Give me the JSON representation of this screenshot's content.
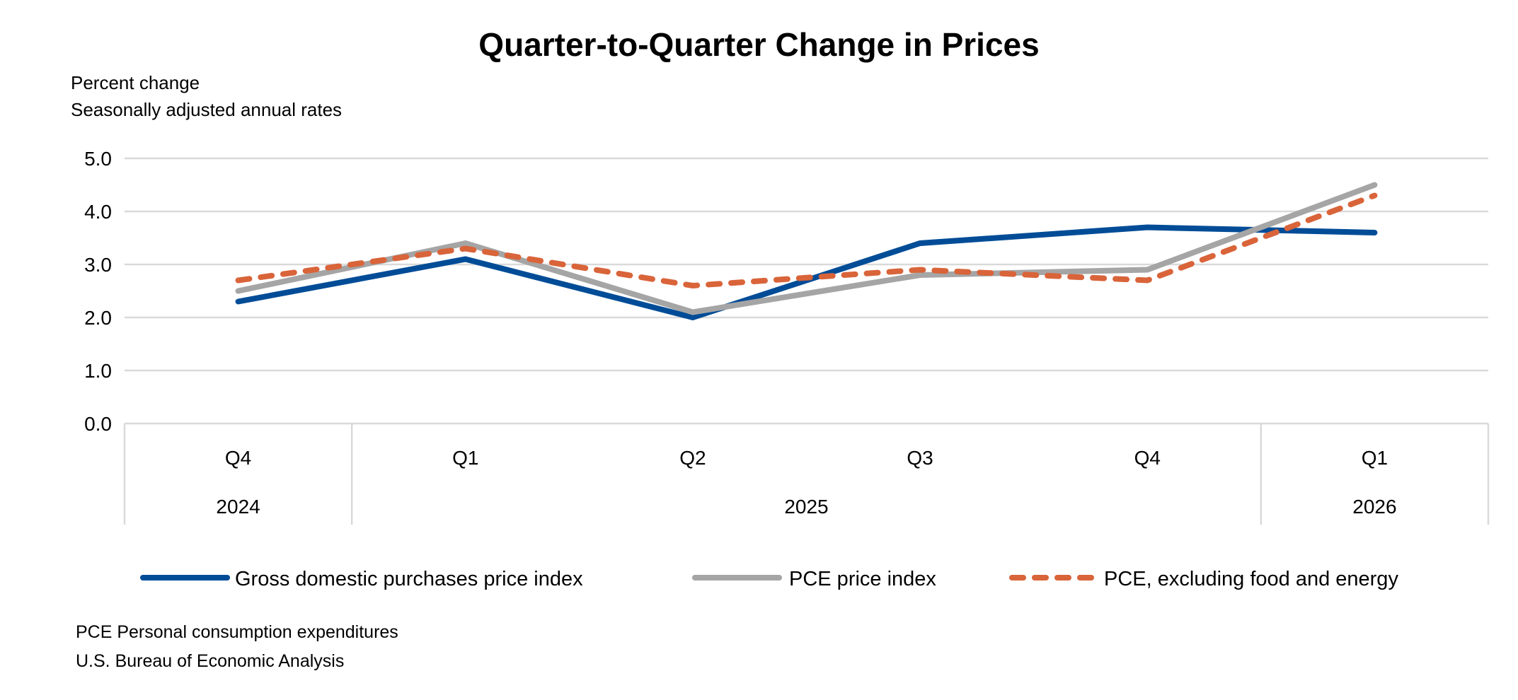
{
  "chart_data": {
    "type": "line",
    "title": "Quarter-to-Quarter Change in Prices",
    "ylabel_lines": [
      "Percent change",
      "Seasonally adjusted annual rates"
    ],
    "ylim": [
      0,
      5
    ],
    "yticks": [
      "0.0",
      "1.0",
      "2.0",
      "3.0",
      "4.0",
      "5.0"
    ],
    "categories": [
      "Q4",
      "Q1",
      "Q2",
      "Q3",
      "Q4",
      "Q1"
    ],
    "category_groups": [
      {
        "label": "2024",
        "span": 1
      },
      {
        "label": "2025",
        "span": 4
      },
      {
        "label": "2026",
        "span": 1
      }
    ],
    "grid": true,
    "legend_position": "bottom",
    "series": [
      {
        "name": "Gross domestic purchases price index",
        "color": "#004C97",
        "style": "solid",
        "values": [
          2.3,
          3.1,
          2.0,
          3.4,
          3.7,
          3.6
        ]
      },
      {
        "name": "PCE price index",
        "color": "#A5A5A5",
        "style": "solid",
        "values": [
          2.5,
          3.4,
          2.1,
          2.8,
          2.9,
          4.5
        ]
      },
      {
        "name": "PCE, excluding food and energy",
        "color": "#D9643A",
        "style": "dashed",
        "values": [
          2.7,
          3.3,
          2.6,
          2.9,
          2.7,
          4.3
        ]
      }
    ]
  },
  "footnotes": [
    "PCE Personal consumption expenditures",
    "U.S. Bureau of Economic Analysis"
  ]
}
